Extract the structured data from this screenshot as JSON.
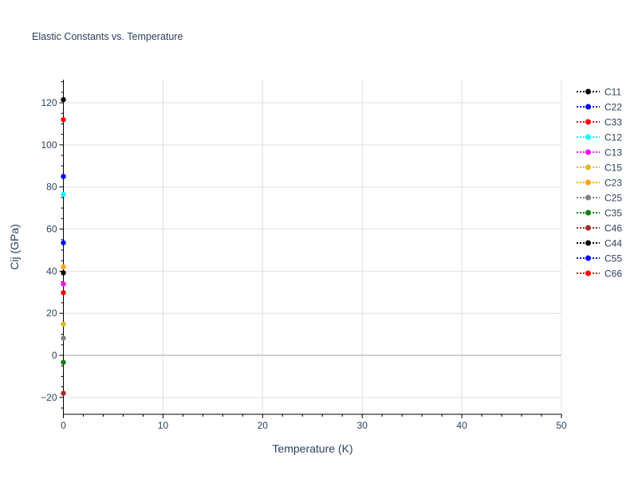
{
  "chart_data": {
    "type": "scatter",
    "title": "Elastic Constants vs. Temperature",
    "xlabel": "Temperature (K)",
    "ylabel": "Cij (GPa)",
    "xlim": [
      0,
      50
    ],
    "ylim": [
      -28,
      131
    ],
    "xticks": [
      0,
      10,
      20,
      30,
      40,
      50
    ],
    "yticks": [
      -20,
      0,
      20,
      40,
      60,
      80,
      100,
      120
    ],
    "grid": true,
    "legend_placement": "right",
    "line_style": "dotted",
    "series": [
      {
        "name": "C11",
        "color": "#000000",
        "x": [
          0
        ],
        "y": [
          121.5
        ]
      },
      {
        "name": "C22",
        "color": "#0000ff",
        "x": [
          0
        ],
        "y": [
          85
        ]
      },
      {
        "name": "C33",
        "color": "#ff0000",
        "x": [
          0
        ],
        "y": [
          112
        ]
      },
      {
        "name": "C12",
        "color": "#00ffff",
        "x": [
          0
        ],
        "y": [
          76.5
        ]
      },
      {
        "name": "C13",
        "color": "#ff00ff",
        "x": [
          0
        ],
        "y": [
          33.9
        ]
      },
      {
        "name": "C15",
        "color": "#e6b619",
        "x": [
          0
        ],
        "y": [
          14.8
        ]
      },
      {
        "name": "C23",
        "color": "#ffa500",
        "x": [
          0
        ],
        "y": [
          42.1
        ]
      },
      {
        "name": "C25",
        "color": "#808080",
        "x": [
          0
        ],
        "y": [
          8.2
        ]
      },
      {
        "name": "C35",
        "color": "#008000",
        "x": [
          0
        ],
        "y": [
          -3.3
        ]
      },
      {
        "name": "C46",
        "color": "#a52a2a",
        "x": [
          0
        ],
        "y": [
          -18
        ]
      },
      {
        "name": "C44",
        "color": "#000000",
        "x": [
          0
        ],
        "y": [
          39.2
        ]
      },
      {
        "name": "C55",
        "color": "#0000ff",
        "x": [
          0
        ],
        "y": [
          53.5
        ]
      },
      {
        "name": "C66",
        "color": "#ff0000",
        "x": [
          0
        ],
        "y": [
          29.8
        ]
      }
    ]
  }
}
